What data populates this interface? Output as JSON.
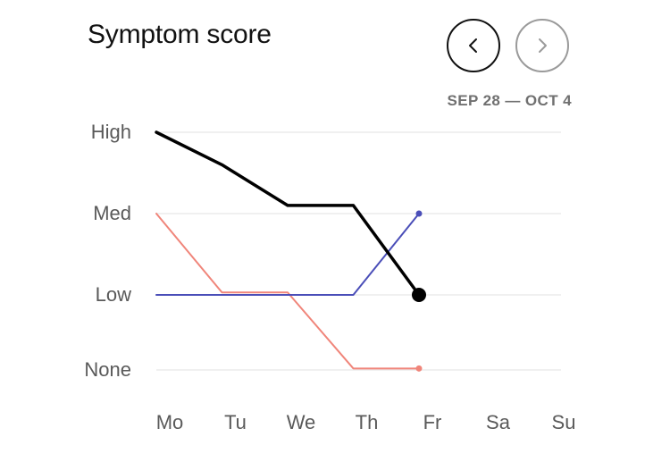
{
  "header": {
    "title": "Symptom score",
    "date_range": "SEP 28 — OCT 4"
  },
  "nav": {
    "prev_icon": "chevron-left-icon",
    "next_icon": "chevron-right-icon"
  },
  "chart_data": {
    "type": "line",
    "categories": [
      "Mo",
      "Tu",
      "We",
      "Th",
      "Fr",
      "Sa",
      "Su"
    ],
    "levels": [
      "None",
      "Low",
      "Med",
      "High"
    ],
    "ylim": [
      0,
      3
    ],
    "grid": true,
    "series": [
      {
        "color": "#000000",
        "values": [
          3,
          2.6,
          2.1,
          2.1,
          1.0,
          null,
          null
        ]
      },
      {
        "color": "#f0857a",
        "values": [
          2,
          1.03,
          1.03,
          0.02,
          0.02,
          null,
          null
        ]
      },
      {
        "color": "#4a4eb8",
        "values": [
          1.0,
          1.0,
          1.0,
          1.0,
          2.0,
          null,
          null
        ]
      }
    ]
  }
}
